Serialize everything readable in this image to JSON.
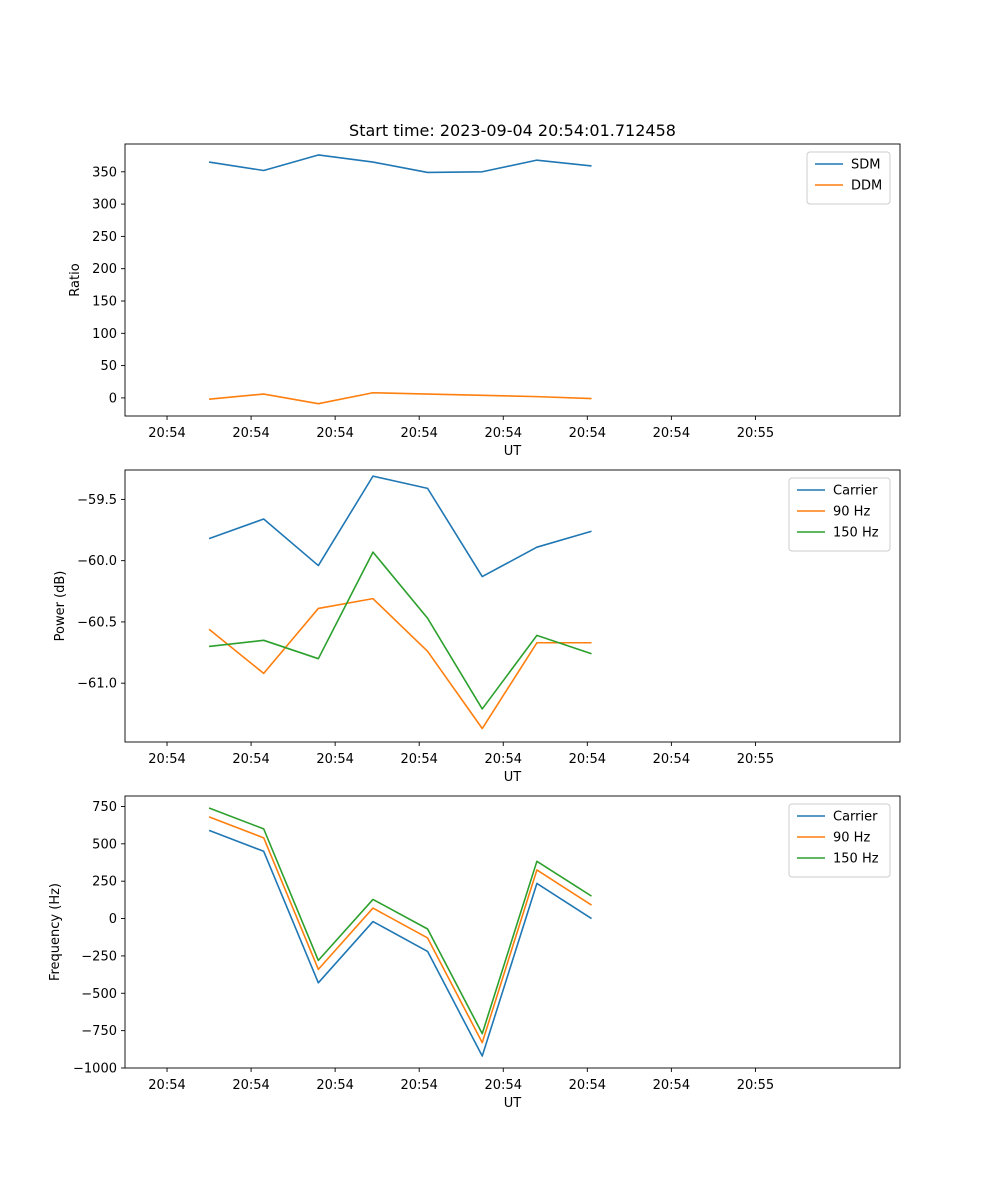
{
  "figure_title": "Start time: 2023-09-04 20:54:01.712458",
  "colors": {
    "blue": "#1f77b4",
    "orange": "#ff7f0e",
    "green": "#2ca02c"
  },
  "chart_data": [
    {
      "type": "line",
      "id": "ratio",
      "title": "Start time: 2023-09-04 20:54:01.712458",
      "xlabel": "UT",
      "ylabel": "Ratio",
      "x_tick_labels": [
        "20:54",
        "20:54",
        "20:54",
        "20:54",
        "20:54",
        "20:54",
        "20:54",
        "20:55"
      ],
      "x_index": [
        0,
        1,
        2,
        3,
        4,
        5,
        6,
        7
      ],
      "xlim": [
        -0.5,
        8.72
      ],
      "ylim": [
        -28,
        393
      ],
      "y_ticks": [
        0,
        50,
        100,
        150,
        200,
        250,
        300,
        350
      ],
      "y_tick_labels": [
        "0",
        "50",
        "100",
        "150",
        "200",
        "250",
        "300",
        "350"
      ],
      "legend_position": "top-right",
      "series": [
        {
          "name": "SDM",
          "color": "#1f77b4",
          "x": [
            0.5,
            1.15,
            1.8,
            2.45,
            3.1,
            3.75,
            4.4,
            5.05
          ],
          "values": [
            365,
            352,
            376,
            365,
            349,
            350,
            368,
            359
          ]
        },
        {
          "name": "DDM",
          "color": "#ff7f0e",
          "x": [
            0.5,
            1.15,
            1.8,
            2.45,
            3.1,
            3.75,
            4.4,
            5.05
          ],
          "values": [
            -2,
            6,
            -9,
            8,
            6,
            4,
            2,
            -1
          ]
        }
      ]
    },
    {
      "type": "line",
      "id": "power",
      "xlabel": "UT",
      "ylabel": "Power (dB)",
      "x_tick_labels": [
        "20:54",
        "20:54",
        "20:54",
        "20:54",
        "20:54",
        "20:54",
        "20:54",
        "20:55"
      ],
      "x_index": [
        0,
        1,
        2,
        3,
        4,
        5,
        6,
        7
      ],
      "xlim": [
        -0.5,
        8.72
      ],
      "ylim": [
        -61.48,
        -59.26
      ],
      "y_ticks": [
        -61.0,
        -60.5,
        -60.0,
        -59.5
      ],
      "y_tick_labels": [
        "−61.0",
        "−60.5",
        "−60.0",
        "−59.5"
      ],
      "legend_position": "top-right",
      "series": [
        {
          "name": "Carrier",
          "color": "#1f77b4",
          "x": [
            0.5,
            1.15,
            1.8,
            2.45,
            3.1,
            3.75,
            4.4,
            5.05
          ],
          "values": [
            -59.82,
            -59.66,
            -60.04,
            -59.31,
            -59.41,
            -60.13,
            -59.89,
            -59.76
          ]
        },
        {
          "name": "90 Hz",
          "color": "#ff7f0e",
          "x": [
            0.5,
            1.15,
            1.8,
            2.45,
            3.1,
            3.75,
            4.4,
            5.05
          ],
          "values": [
            -60.56,
            -60.92,
            -60.39,
            -60.31,
            -60.74,
            -61.37,
            -60.67,
            -60.67
          ]
        },
        {
          "name": "150 Hz",
          "color": "#2ca02c",
          "x": [
            0.5,
            1.15,
            1.8,
            2.45,
            3.1,
            3.75,
            4.4,
            5.05
          ],
          "values": [
            -60.7,
            -60.65,
            -60.8,
            -59.93,
            -60.47,
            -61.21,
            -60.61,
            -60.76
          ]
        }
      ]
    },
    {
      "type": "line",
      "id": "frequency",
      "xlabel": "UT",
      "ylabel": "Frequency (Hz)",
      "x_tick_labels": [
        "20:54",
        "20:54",
        "20:54",
        "20:54",
        "20:54",
        "20:54",
        "20:54",
        "20:55"
      ],
      "x_index": [
        0,
        1,
        2,
        3,
        4,
        5,
        6,
        7
      ],
      "xlim": [
        -0.5,
        8.72
      ],
      "ylim": [
        -1000,
        820
      ],
      "y_ticks": [
        -1000,
        -750,
        -500,
        -250,
        0,
        250,
        500,
        750
      ],
      "y_tick_labels": [
        "−1000",
        "−750",
        "−500",
        "−250",
        "0",
        "250",
        "500",
        "750"
      ],
      "legend_position": "top-right",
      "series": [
        {
          "name": "Carrier",
          "color": "#1f77b4",
          "x": [
            0.5,
            1.15,
            1.8,
            2.45,
            3.1,
            3.75,
            4.4,
            5.05
          ],
          "values": [
            590,
            450,
            -430,
            -20,
            -220,
            -920,
            235,
            0
          ]
        },
        {
          "name": "90 Hz",
          "color": "#ff7f0e",
          "x": [
            0.5,
            1.15,
            1.8,
            2.45,
            3.1,
            3.75,
            4.4,
            5.05
          ],
          "values": [
            680,
            540,
            -340,
            70,
            -130,
            -830,
            325,
            90
          ]
        },
        {
          "name": "150 Hz",
          "color": "#2ca02c",
          "x": [
            0.5,
            1.15,
            1.8,
            2.45,
            3.1,
            3.75,
            4.4,
            5.05
          ],
          "values": [
            740,
            600,
            -280,
            128,
            -70,
            -770,
            383,
            150
          ]
        }
      ]
    }
  ]
}
